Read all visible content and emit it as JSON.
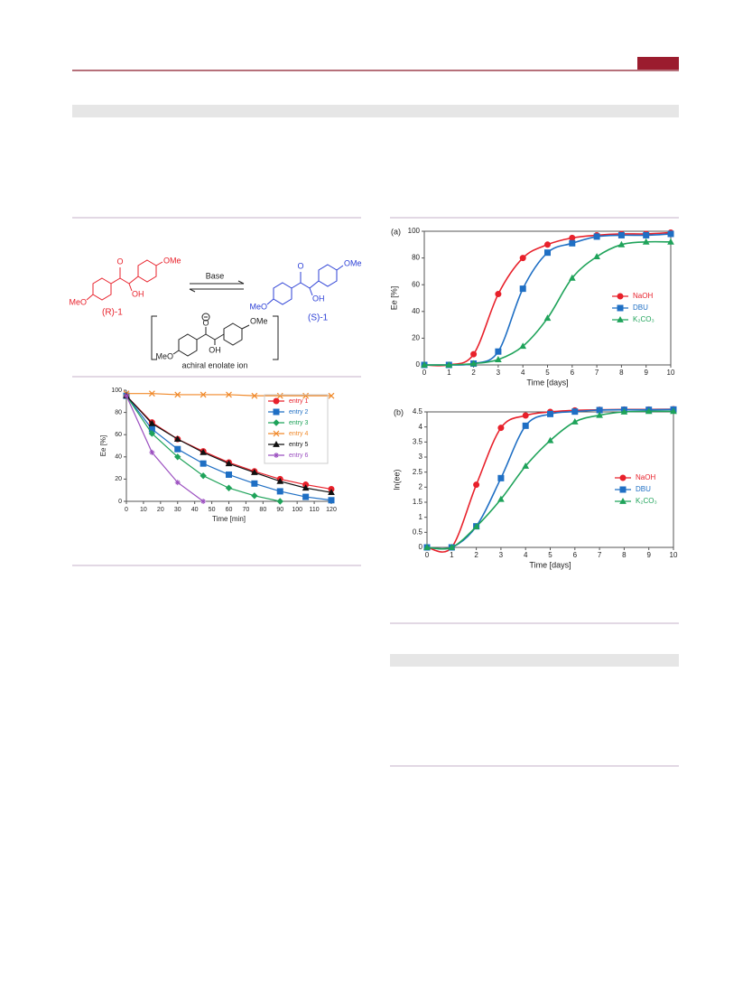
{
  "scheme": {
    "reagent": "Base",
    "r_label": "(R)-1",
    "s_label": "(S)-1",
    "intermediate": "achiral enolate ion",
    "r_atoms": [
      "O",
      "OMe",
      "MeO",
      "OH"
    ],
    "s_atoms": [
      "O",
      "OMe",
      "MeO",
      "OH"
    ],
    "e_atoms": [
      "O",
      "OMe",
      "MeO",
      "OH"
    ]
  },
  "chart_data": [
    {
      "type": "line",
      "xlabel": "Time [min]",
      "ylabel": "Ee [%]",
      "xlim": [
        0,
        120
      ],
      "xticks": [
        0,
        10,
        20,
        30,
        40,
        50,
        60,
        70,
        80,
        90,
        100,
        110,
        120
      ],
      "ylim": [
        0,
        100
      ],
      "yticks": [
        0,
        20,
        40,
        60,
        80,
        100
      ],
      "legend": "upper right",
      "legend_box": true,
      "smooth": false,
      "series": [
        {
          "name": "entry 1",
          "color": "#e8212b",
          "marker": "circle",
          "x": [
            0,
            15,
            30,
            45,
            60,
            75,
            90,
            105,
            120
          ],
          "values": [
            95,
            71,
            56,
            45,
            35,
            27,
            20,
            15,
            11
          ]
        },
        {
          "name": "entry 2",
          "color": "#1f6fc4",
          "marker": "square",
          "x": [
            0,
            15,
            30,
            45,
            60,
            75,
            90,
            105,
            120
          ],
          "values": [
            95,
            65,
            47,
            34,
            24,
            16,
            9,
            4,
            1
          ]
        },
        {
          "name": "entry 3",
          "color": "#1fa35a",
          "marker": "diamond",
          "x": [
            0,
            15,
            30,
            45,
            60,
            75,
            90
          ],
          "values": [
            95,
            61,
            40,
            23,
            12,
            5,
            0
          ]
        },
        {
          "name": "entry 4",
          "color": "#f0892a",
          "marker": "cross",
          "x": [
            0,
            15,
            30,
            45,
            60,
            75,
            90,
            105,
            120
          ],
          "values": [
            97,
            97,
            96,
            96,
            96,
            95,
            95,
            95,
            95
          ]
        },
        {
          "name": "entry 5",
          "color": "#111111",
          "marker": "triangle",
          "x": [
            0,
            15,
            30,
            45,
            60,
            75,
            90,
            105,
            120
          ],
          "values": [
            95,
            70,
            56,
            44,
            34,
            26,
            18,
            12,
            8
          ]
        },
        {
          "name": "entry 6",
          "color": "#9b4fc0",
          "marker": "star",
          "x": [
            0,
            15,
            30,
            45
          ],
          "values": [
            95,
            44,
            17,
            0
          ]
        }
      ]
    },
    {
      "type": "line",
      "title": "(a)",
      "xlabel": "Time [days]",
      "ylabel": "Ee [%]",
      "xlim": [
        0,
        10
      ],
      "xticks": [
        0,
        1,
        2,
        3,
        4,
        5,
        6,
        7,
        8,
        9,
        10
      ],
      "ylim": [
        0,
        100
      ],
      "yticks": [
        0,
        20,
        40,
        60,
        80,
        100
      ],
      "legend": "center right",
      "legend_box": false,
      "smooth": true,
      "x": [
        0,
        1,
        2,
        3,
        4,
        5,
        6,
        7,
        8,
        9,
        10
      ],
      "series": [
        {
          "name": "NaOH",
          "color": "#e8212b",
          "marker": "circle",
          "values": [
            0,
            0,
            8,
            53,
            80,
            90,
            95,
            97,
            98,
            98,
            99
          ]
        },
        {
          "name": "DBU",
          "color": "#1f6fc4",
          "marker": "square",
          "values": [
            0,
            0,
            1,
            10,
            57,
            84,
            91,
            96,
            97,
            97,
            98
          ]
        },
        {
          "name": "K₂CO₃",
          "color": "#1fa35a",
          "marker": "triangle",
          "values": [
            0,
            0,
            1,
            4,
            14,
            35,
            65,
            81,
            90,
            92,
            92
          ]
        }
      ]
    },
    {
      "type": "line",
      "title": "(b)",
      "xlabel": "Time [days]",
      "ylabel": "ln(ee)",
      "xlim": [
        0,
        10
      ],
      "xticks": [
        0,
        1,
        2,
        3,
        4,
        5,
        6,
        7,
        8,
        9,
        10
      ],
      "ylim": [
        0,
        4.5
      ],
      "yticks": [
        0,
        0.5,
        1,
        1.5,
        2,
        2.5,
        3,
        3.5,
        4,
        4.5
      ],
      "legend": "center right",
      "legend_box": false,
      "smooth": true,
      "x": [
        0,
        1,
        2,
        3,
        4,
        5,
        6,
        7,
        8,
        9,
        10
      ],
      "series": [
        {
          "name": "NaOH",
          "color": "#e8212b",
          "marker": "circle",
          "values": [
            0,
            0,
            2.08,
            3.97,
            4.38,
            4.5,
            4.55,
            4.57,
            4.58,
            4.58,
            4.59
          ]
        },
        {
          "name": "DBU",
          "color": "#1f6fc4",
          "marker": "square",
          "values": [
            0,
            0,
            0.7,
            2.3,
            4.04,
            4.43,
            4.51,
            4.56,
            4.57,
            4.57,
            4.58
          ]
        },
        {
          "name": "K₂CO₃",
          "color": "#1fa35a",
          "marker": "triangle",
          "values": [
            0,
            0,
            0.69,
            1.6,
            2.7,
            3.55,
            4.17,
            4.39,
            4.5,
            4.52,
            4.52
          ]
        }
      ]
    }
  ]
}
